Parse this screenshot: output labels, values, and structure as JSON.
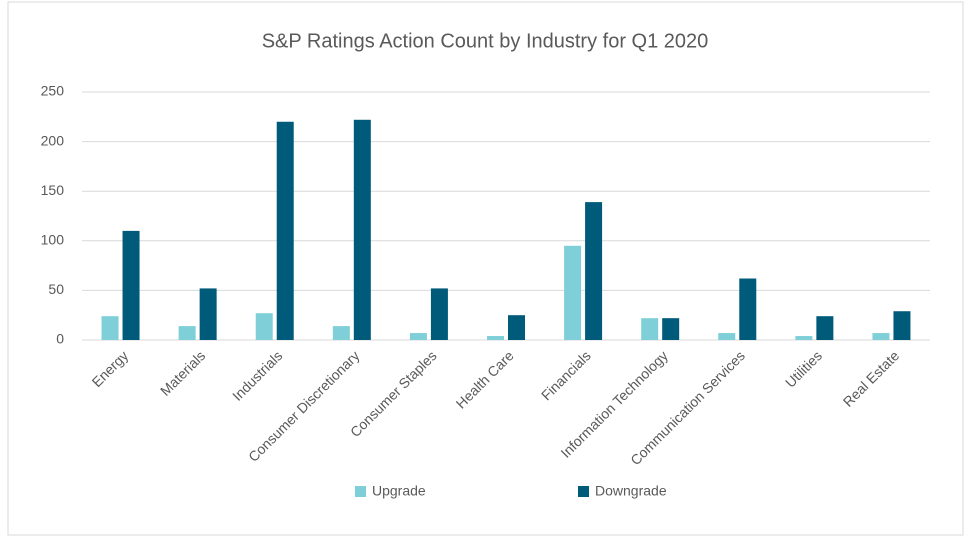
{
  "chart_data": {
    "type": "bar",
    "title": "S&P Ratings Action Count by Industry for Q1 2020",
    "categories": [
      "Energy",
      "Materials",
      "Industrials",
      "Consumer Discretionary",
      "Consumer Staples",
      "Health Care",
      "Financials",
      "Information Technology",
      "Communication Services",
      "Utilities",
      "Real Estate"
    ],
    "series": [
      {
        "name": "Upgrade",
        "color": "#7ecfd8",
        "values": [
          24,
          14,
          27,
          14,
          7,
          4,
          95,
          22,
          7,
          4,
          7
        ]
      },
      {
        "name": "Downgrade",
        "color": "#005a7a",
        "values": [
          110,
          52,
          220,
          222,
          52,
          25,
          139,
          22,
          62,
          24,
          29
        ]
      }
    ],
    "ylim": [
      0,
      250
    ],
    "yticks": [
      0,
      50,
      100,
      150,
      200,
      250
    ],
    "grid": true,
    "legend": "bottom"
  }
}
